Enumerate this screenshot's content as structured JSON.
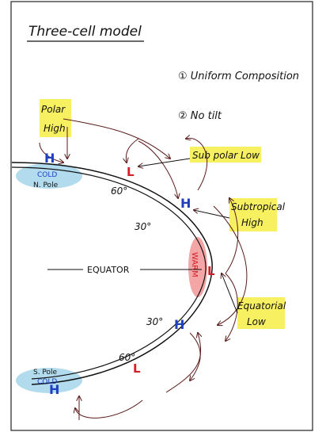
{
  "title": "Three-cell model",
  "notes": [
    "① Uniform Composition",
    "② No tilt"
  ],
  "labels": {
    "polar_high": [
      "Polar",
      "High"
    ],
    "subpolar_low": "Sub polar Low",
    "subtropical_high": [
      "Subtropical",
      "High"
    ],
    "equator": "EQUATOR",
    "equatorial_low": [
      "Equatorial",
      "Low"
    ],
    "north_cold": "COLD",
    "north_pole": "N. Pole",
    "warm": "WARM",
    "south_pole": "S. Pole",
    "south_cold": "COLD"
  },
  "latitudes": [
    "60°",
    "30°",
    "30°",
    "60°"
  ],
  "symbols": [
    "H",
    "L",
    "H",
    "L",
    "H",
    "L",
    "H"
  ]
}
